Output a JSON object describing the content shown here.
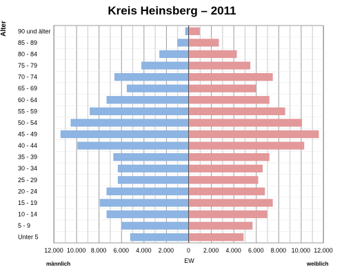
{
  "chart_data": {
    "type": "bar",
    "title": "Kreis Heinsberg – 2011",
    "ylabel": "Alter",
    "xlabel": "EW",
    "left_label": "männlich",
    "right_label": "weiblich",
    "categories": [
      "90 und älter",
      "85 - 89",
      "80 - 84",
      "75 - 79",
      "70 - 74",
      "65 - 69",
      "60 - 64",
      "55 - 59",
      "50 - 54",
      "45 - 49",
      "40 - 44",
      "35 - 39",
      "30 - 34",
      "25 - 29",
      "20 - 24",
      "15 - 19",
      "10 - 14",
      "5 - 9",
      "Unter 5"
    ],
    "series": [
      {
        "color": "#8DB4E2",
        "values": [
          -300,
          -1000,
          -2600,
          -4200,
          -6600,
          -5500,
          -7300,
          -8800,
          -10500,
          -11400,
          -9900,
          -6700,
          -6300,
          -6300,
          -7300,
          -7900,
          -7300,
          -6000,
          -5200
        ]
      },
      {
        "color": "#E3989A",
        "values": [
          1000,
          2700,
          4300,
          5500,
          7500,
          6000,
          7200,
          8600,
          10100,
          11600,
          10300,
          7200,
          6600,
          6200,
          6800,
          7500,
          7000,
          5700,
          4900
        ]
      }
    ],
    "xlim": [
      -12000,
      12000
    ],
    "xticks": [
      -12000,
      -10000,
      -8000,
      -6000,
      -4000,
      -2000,
      0,
      2000,
      4000,
      6000,
      8000,
      10000,
      12000
    ],
    "xtick_labels": [
      "12.000",
      "10.000",
      "8.000",
      "6.000",
      "4.000",
      "2.000",
      "0",
      "2.000",
      "4.000",
      "6.000",
      "8.000",
      "10.000",
      "12.000"
    ],
    "grid": true
  }
}
